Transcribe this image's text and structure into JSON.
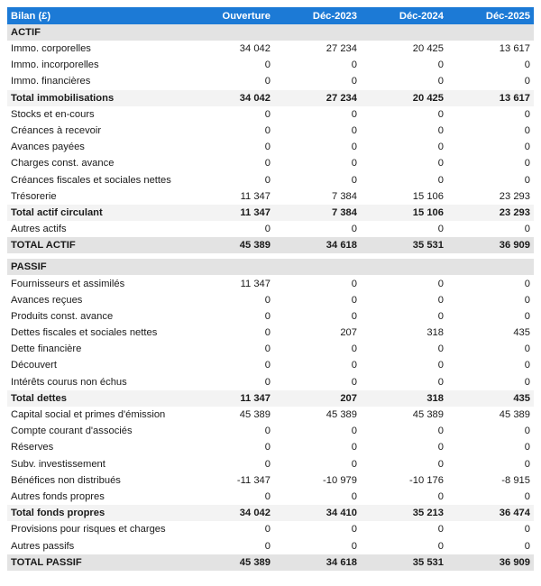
{
  "header": [
    "Bilan (£)",
    "Ouverture",
    "Déc-2023",
    "Déc-2024",
    "Déc-2025"
  ],
  "sections": [
    {
      "title": "ACTIF",
      "rows": [
        {
          "type": "row",
          "label": "Immo. corporelles",
          "values": [
            "34 042",
            "27 234",
            "20 425",
            "13 617"
          ]
        },
        {
          "type": "row",
          "label": "Immo. incorporelles",
          "values": [
            "0",
            "0",
            "0",
            "0"
          ]
        },
        {
          "type": "row",
          "label": "Immo. financières",
          "values": [
            "0",
            "0",
            "0",
            "0"
          ]
        },
        {
          "type": "total",
          "label": "Total immobilisations",
          "values": [
            "34 042",
            "27 234",
            "20 425",
            "13 617"
          ]
        },
        {
          "type": "row",
          "label": "Stocks et en-cours",
          "values": [
            "0",
            "0",
            "0",
            "0"
          ]
        },
        {
          "type": "row",
          "label": "Créances à recevoir",
          "values": [
            "0",
            "0",
            "0",
            "0"
          ]
        },
        {
          "type": "row",
          "label": "Avances payées",
          "values": [
            "0",
            "0",
            "0",
            "0"
          ]
        },
        {
          "type": "row",
          "label": "Charges const. avance",
          "values": [
            "0",
            "0",
            "0",
            "0"
          ]
        },
        {
          "type": "row",
          "label": "Créances fiscales et sociales nettes",
          "values": [
            "0",
            "0",
            "0",
            "0"
          ]
        },
        {
          "type": "row",
          "label": "Trésorerie",
          "values": [
            "11 347",
            "7 384",
            "15 106",
            "23 293"
          ]
        },
        {
          "type": "total",
          "label": "Total actif circulant",
          "values": [
            "11 347",
            "7 384",
            "15 106",
            "23 293"
          ]
        },
        {
          "type": "row",
          "label": "Autres actifs",
          "values": [
            "0",
            "0",
            "0",
            "0"
          ]
        },
        {
          "type": "grand",
          "label": "TOTAL ACTIF",
          "values": [
            "45 389",
            "34 618",
            "35 531",
            "36 909"
          ]
        }
      ]
    },
    {
      "title": "PASSIF",
      "rows": [
        {
          "type": "row",
          "label": "Fournisseurs et assimilés",
          "values": [
            "11 347",
            "0",
            "0",
            "0"
          ]
        },
        {
          "type": "row",
          "label": "Avances reçues",
          "values": [
            "0",
            "0",
            "0",
            "0"
          ]
        },
        {
          "type": "row",
          "label": "Produits const. avance",
          "values": [
            "0",
            "0",
            "0",
            "0"
          ]
        },
        {
          "type": "row",
          "label": "Dettes fiscales et sociales nettes",
          "values": [
            "0",
            "207",
            "318",
            "435"
          ]
        },
        {
          "type": "row",
          "label": "Dette financière",
          "values": [
            "0",
            "0",
            "0",
            "0"
          ]
        },
        {
          "type": "row",
          "label": "Découvert",
          "values": [
            "0",
            "0",
            "0",
            "0"
          ]
        },
        {
          "type": "row",
          "label": "Intérêts courus non échus",
          "values": [
            "0",
            "0",
            "0",
            "0"
          ]
        },
        {
          "type": "total",
          "label": "Total dettes",
          "values": [
            "11 347",
            "207",
            "318",
            "435"
          ]
        },
        {
          "type": "row",
          "label": "Capital social et primes d'émission",
          "values": [
            "45 389",
            "45 389",
            "45 389",
            "45 389"
          ]
        },
        {
          "type": "row",
          "label": "Compte courant d'associés",
          "values": [
            "0",
            "0",
            "0",
            "0"
          ]
        },
        {
          "type": "row",
          "label": "Réserves",
          "values": [
            "0",
            "0",
            "0",
            "0"
          ]
        },
        {
          "type": "row",
          "label": "Subv. investissement",
          "values": [
            "0",
            "0",
            "0",
            "0"
          ]
        },
        {
          "type": "row",
          "label": "Bénéfices non distribués",
          "values": [
            "-11 347",
            "-10 979",
            "-10 176",
            "-8 915"
          ]
        },
        {
          "type": "row",
          "label": "Autres fonds propres",
          "values": [
            "0",
            "0",
            "0",
            "0"
          ]
        },
        {
          "type": "total",
          "label": "Total fonds propres",
          "values": [
            "34 042",
            "34 410",
            "35 213",
            "36 474"
          ]
        },
        {
          "type": "row",
          "label": "Provisions pour risques et charges",
          "values": [
            "0",
            "0",
            "0",
            "0"
          ]
        },
        {
          "type": "row",
          "label": "Autres passifs",
          "values": [
            "0",
            "0",
            "0",
            "0"
          ]
        },
        {
          "type": "grand",
          "label": "TOTAL PASSIF",
          "values": [
            "45 389",
            "34 618",
            "35 531",
            "36 909"
          ]
        }
      ]
    }
  ]
}
